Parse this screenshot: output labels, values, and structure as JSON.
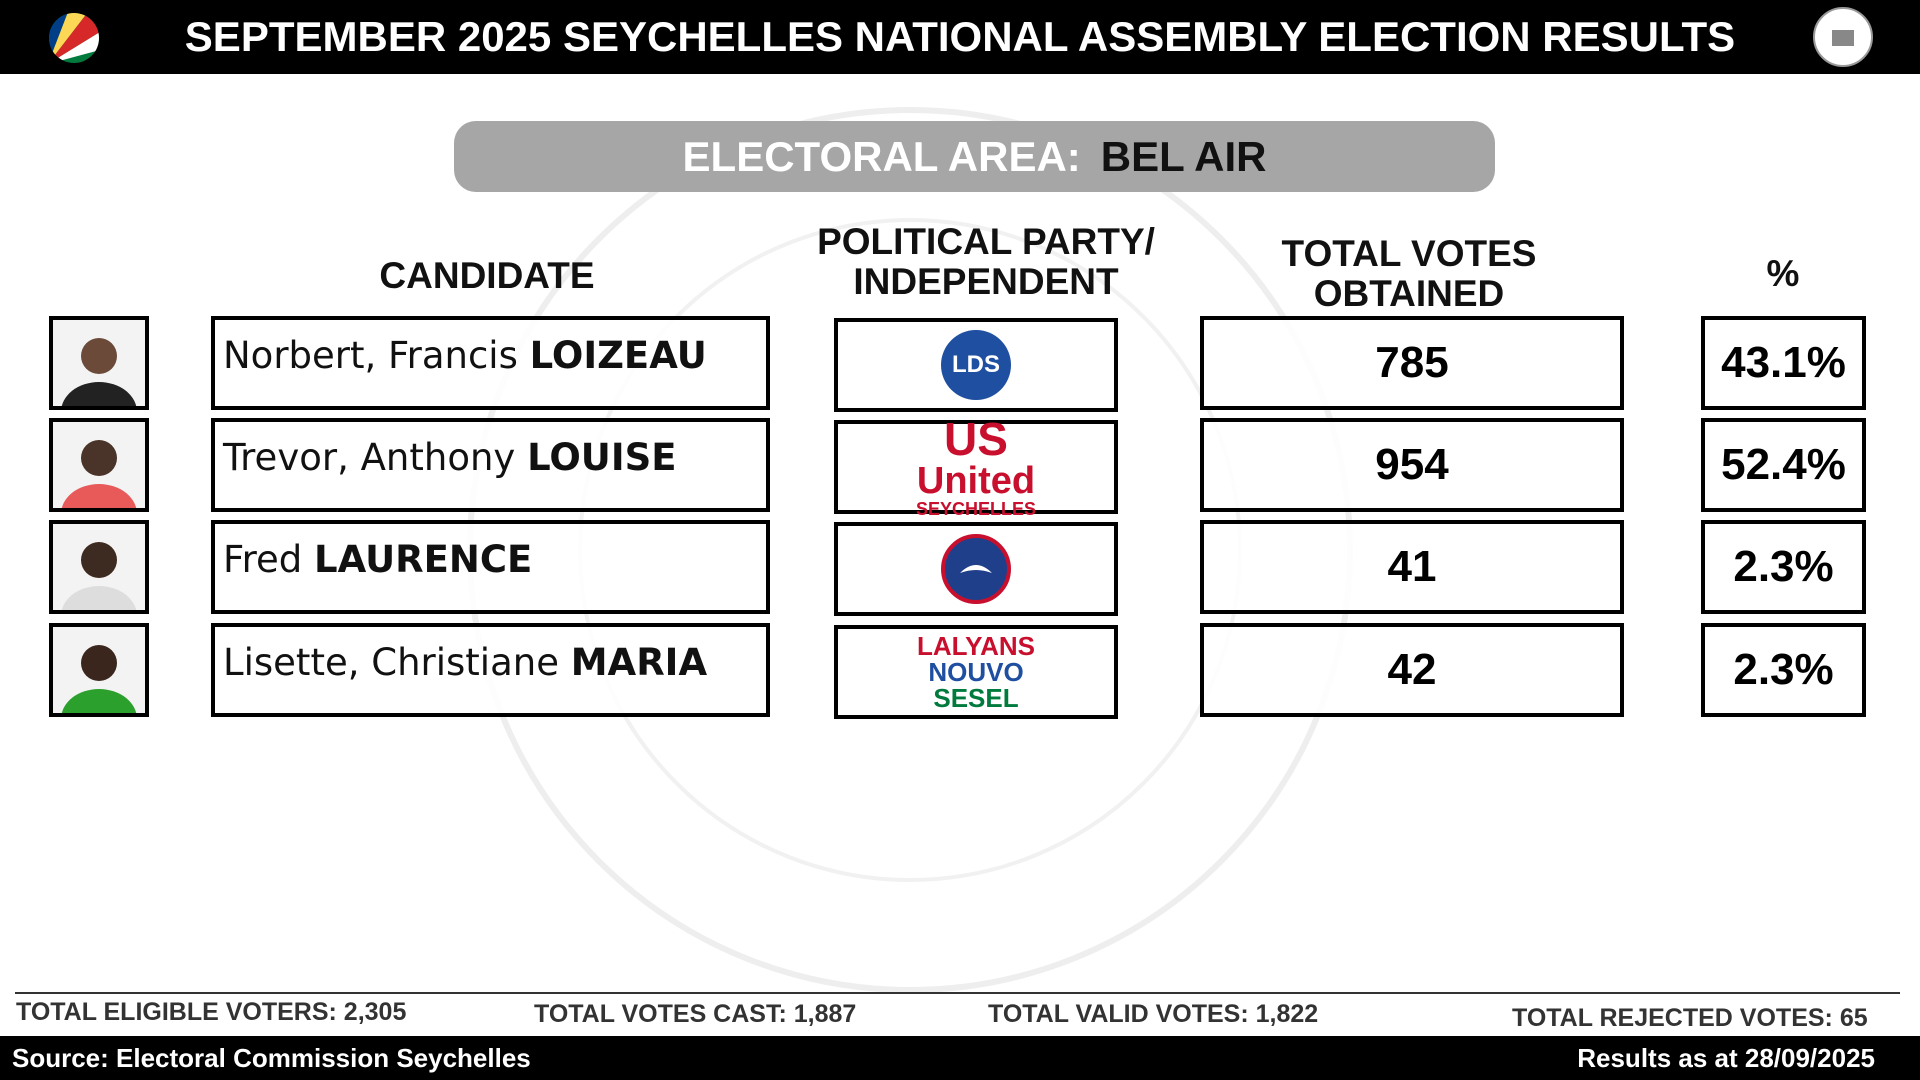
{
  "header": {
    "title": "SEPTEMBER 2025 SEYCHELLES NATIONAL ASSEMBLY ELECTION RESULTS"
  },
  "area": {
    "label": "ELECTORAL AREA:",
    "name": "BEL AIR"
  },
  "columns": {
    "candidate": "CANDIDATE",
    "party": "POLITICAL PARTY/ INDEPENDENT",
    "votes": "TOTAL VOTES OBTAINED",
    "percent": "%"
  },
  "rows": [
    {
      "given": "Norbert, Francis",
      "surname": "LOIZEAU",
      "party": [
        "LDS"
      ],
      "votes": "785",
      "percent": "43.1%"
    },
    {
      "given": "Trevor, Anthony",
      "surname": "LOUISE",
      "party": [
        "US",
        "United",
        "SEYCHELLES"
      ],
      "votes": "954",
      "percent": "52.4%"
    },
    {
      "given": "Fred",
      "surname": "LAURENCE",
      "party": [],
      "votes": "41",
      "percent": "2.3%"
    },
    {
      "given": "Lisette, Christiane",
      "surname": "MARIA",
      "party": [
        "LALYANS",
        "NOUVO",
        "SESEL"
      ],
      "votes": "42",
      "percent": "2.3%"
    }
  ],
  "footer": {
    "eligible": "TOTAL ELIGIBLE VOTERS: 2,305",
    "cast": "TOTAL VOTES CAST: 1,887",
    "valid": "TOTAL VALID VOTES: 1,822",
    "rejected": "TOTAL REJECTED VOTES: 65",
    "source": "Source: Electoral Commission Seychelles",
    "asof": "Results as at 28/09/2025"
  }
}
